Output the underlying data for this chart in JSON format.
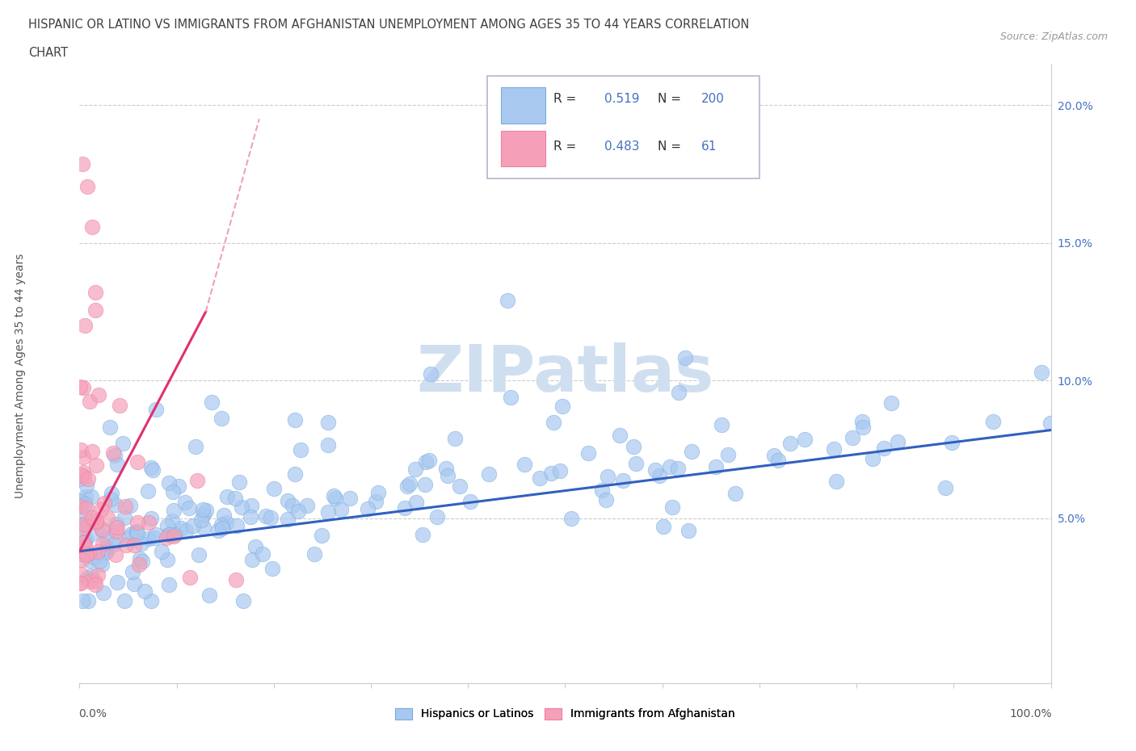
{
  "title_line1": "HISPANIC OR LATINO VS IMMIGRANTS FROM AFGHANISTAN UNEMPLOYMENT AMONG AGES 35 TO 44 YEARS CORRELATION",
  "title_line2": "CHART",
  "source_text": "Source: ZipAtlas.com",
  "ylabel": "Unemployment Among Ages 35 to 44 years",
  "yticks": [
    "5.0%",
    "10.0%",
    "15.0%",
    "20.0%"
  ],
  "ytick_values": [
    0.05,
    0.1,
    0.15,
    0.2
  ],
  "xrange": [
    0.0,
    1.0
  ],
  "yrange": [
    -0.01,
    0.215
  ],
  "r_hispanic": 0.519,
  "n_hispanic": 200,
  "r_afghan": 0.483,
  "n_afghan": 61,
  "blue_color": "#a8c8f0",
  "pink_color": "#f5a0b8",
  "blue_edge_color": "#7aaee0",
  "pink_edge_color": "#f080a0",
  "blue_line_color": "#3060c0",
  "pink_line_color": "#e03070",
  "pink_dash_color": "#f0a0b8",
  "title_color": "#404040",
  "legend_r_color": "#4472c4",
  "watermark_color": "#d0dff0",
  "ytick_color": "#4472c4"
}
